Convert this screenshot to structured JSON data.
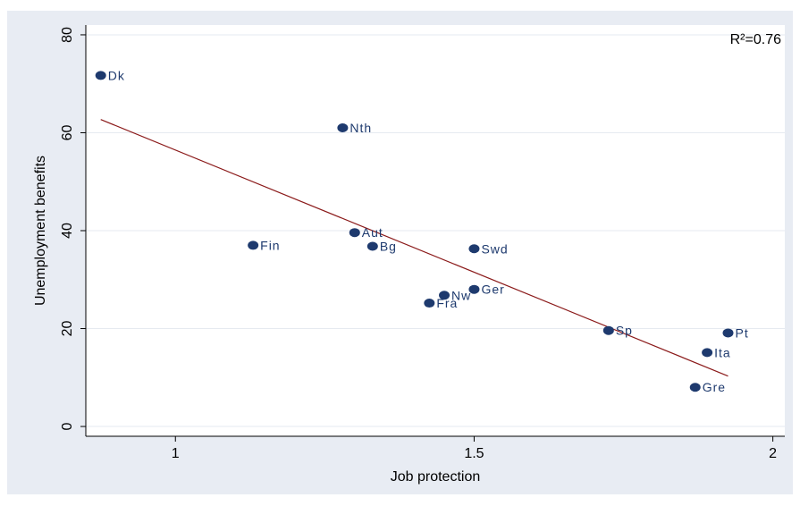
{
  "chart_data": {
    "type": "scatter",
    "title": "",
    "xlabel": "Job protection",
    "ylabel": "Unemployment benefits",
    "xlim": [
      0.85,
      2.02
    ],
    "ylim": [
      -2,
      82
    ],
    "xticks": [
      1,
      1.5,
      2
    ],
    "xtick_labels": [
      "1",
      "1.5",
      "2"
    ],
    "yticks": [
      0,
      20,
      40,
      60,
      80
    ],
    "ytick_labels": [
      "0",
      "20",
      "40",
      "60",
      "80"
    ],
    "grid": true,
    "annotation": "R²=0.76",
    "points": [
      {
        "label": "Dk",
        "x": 0.875,
        "y": 71.7
      },
      {
        "label": "Nth",
        "x": 1.28,
        "y": 61.0
      },
      {
        "label": "Fin",
        "x": 1.13,
        "y": 37.0
      },
      {
        "label": "Aut",
        "x": 1.3,
        "y": 39.6
      },
      {
        "label": "Bg",
        "x": 1.33,
        "y": 36.8
      },
      {
        "label": "Swd",
        "x": 1.5,
        "y": 36.3
      },
      {
        "label": "Ger",
        "x": 1.5,
        "y": 28.0
      },
      {
        "label": "Nw",
        "x": 1.45,
        "y": 26.8
      },
      {
        "label": "Fra",
        "x": 1.425,
        "y": 25.2
      },
      {
        "label": "Sp",
        "x": 1.725,
        "y": 19.6
      },
      {
        "label": "Pt",
        "x": 1.925,
        "y": 19.1
      },
      {
        "label": "Ita",
        "x": 1.89,
        "y": 15.1
      },
      {
        "label": "Gre",
        "x": 1.87,
        "y": 8.0
      }
    ],
    "fit_line": {
      "x": [
        0.875,
        1.925
      ],
      "y": [
        62.7,
        10.3
      ]
    },
    "colors": {
      "outer_background": "#e8ecf3",
      "plot_background": "#ffffff",
      "grid": "#e6eaf0",
      "marker": "#1e3a6e",
      "fit_line": "#8b1a1a",
      "axis": "#000000"
    }
  }
}
